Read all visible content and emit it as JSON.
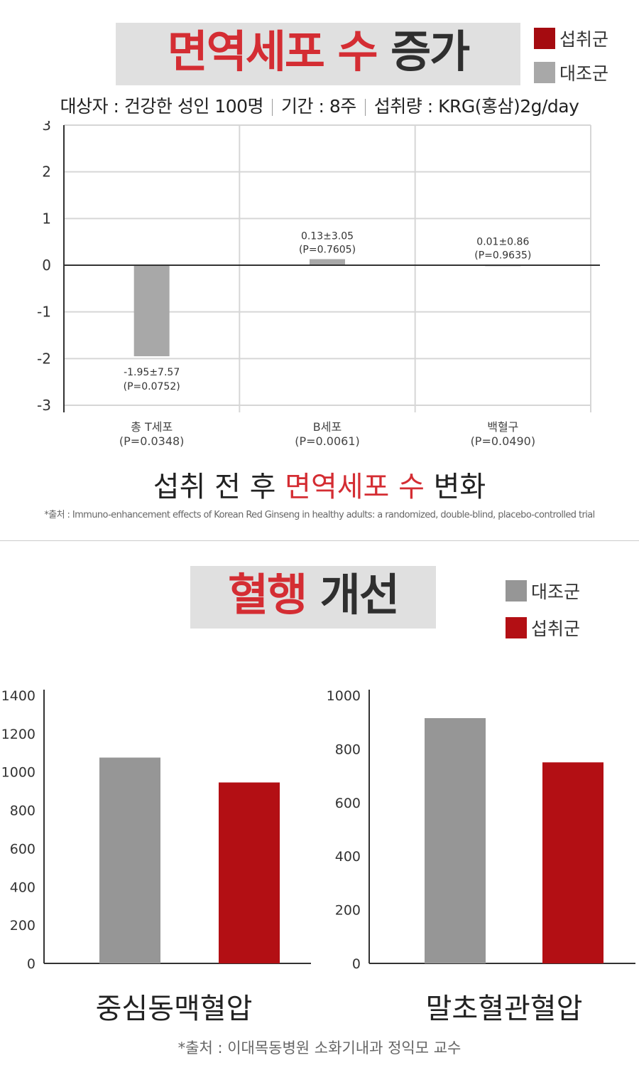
{
  "section1": {
    "title_red": "면역세포 수",
    "title_dark": "증가",
    "legend": [
      {
        "label": "섭취군",
        "color": "#a50b10"
      },
      {
        "label": "대조군",
        "color": "#a8a8a8"
      }
    ],
    "subtitle": {
      "subjects": "대상자 : 건강한 성인 100명",
      "period": "기간 : 8주",
      "intake": "섭취량 : KRG(홍삼)2g/day"
    },
    "caption_dark1": "섭취 전 후",
    "caption_red": "면역세포 수",
    "caption_dark2": "변화",
    "source": "*출처 : Immuno-enhancement effects of Korean Red Ginseng in healthy adults: a randomized, double-blind, placebo-controlled trial"
  },
  "section2": {
    "title_red": "혈행",
    "title_dark": "개선",
    "legend": [
      {
        "label": "대조군",
        "color": "#969696"
      },
      {
        "label": "섭취군",
        "color": "#b30f14"
      }
    ],
    "source": "*출처 : 이대목동병원 소화기내과 정익모 교수"
  },
  "chart_data": [
    {
      "type": "bar",
      "categories": [
        "총 T세포",
        "B세포",
        "백혈구"
      ],
      "category_pvalues": [
        "(P=0.0348)",
        "(P=0.0061)",
        "(P=0.0490)"
      ],
      "series": [
        {
          "name": "대조군",
          "values": [
            -1.95,
            0.13,
            0.01
          ]
        }
      ],
      "data_labels": [
        {
          "value": "-1.95±7.57",
          "p": "(P=0.0752)"
        },
        {
          "value": "0.13±3.05",
          "p": "(P=0.7605)"
        },
        {
          "value": "0.01±0.86",
          "p": "(P=0.9635)"
        }
      ],
      "yticks": [
        "3",
        "2",
        "1",
        "0",
        "-1",
        "-2",
        "-3"
      ],
      "ylim": [
        -3,
        3
      ],
      "grid": true
    },
    {
      "type": "bar",
      "title": "중심동맥혈압",
      "categories": [
        "대조군",
        "섭취군"
      ],
      "values": [
        1075,
        945
      ],
      "colors": [
        "#969696",
        "#b30f14"
      ],
      "yticks": [
        "1400",
        "1200",
        "1000",
        "800",
        "600",
        "400",
        "200",
        "0"
      ],
      "ylim": [
        0,
        1400
      ],
      "grid": false
    },
    {
      "type": "bar",
      "title": "말초혈관혈압",
      "categories": [
        "대조군",
        "섭취군"
      ],
      "values": [
        915,
        750
      ],
      "colors": [
        "#969696",
        "#b30f14"
      ],
      "yticks": [
        "1000",
        "800",
        "600",
        "400",
        "200",
        "0"
      ],
      "ylim": [
        0,
        1000
      ],
      "grid": false
    }
  ]
}
